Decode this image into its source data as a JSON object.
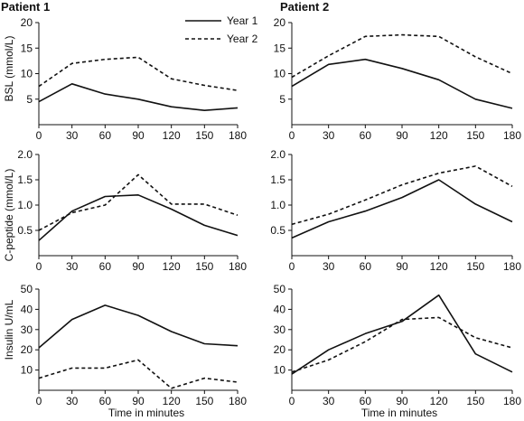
{
  "figure": {
    "patient_titles": [
      "Patient 1",
      "Patient 2"
    ],
    "row_ylabels": [
      "BSL (mmol/L)",
      "C-peptide (mmol/L)",
      "Insulin U/mL"
    ],
    "xlabel": "Time in minutes",
    "legend": [
      {
        "label": "Year 1",
        "style": "solid"
      },
      {
        "label": "Year 2",
        "style": "dashed"
      }
    ],
    "line_color": "#111111"
  },
  "chart_data": [
    {
      "type": "line",
      "panel": "Patient 1 - BSL",
      "title": "Patient 1",
      "ylabel": "BSL (mmol/L)",
      "xlabel": "",
      "x": [
        0,
        30,
        60,
        90,
        120,
        150,
        180
      ],
      "xticks": [
        "0",
        "30",
        "60",
        "90",
        "120",
        "150",
        "180"
      ],
      "ylim": [
        0,
        20
      ],
      "yticks": [
        "5",
        "10",
        "15",
        "20"
      ],
      "series": [
        {
          "name": "Year 1",
          "values": [
            4.5,
            8.0,
            6.0,
            5.0,
            3.5,
            2.8,
            3.3
          ]
        },
        {
          "name": "Year 2",
          "values": [
            7.5,
            12.0,
            12.8,
            13.2,
            9.0,
            7.7,
            6.7
          ]
        }
      ]
    },
    {
      "type": "line",
      "panel": "Patient 2 - BSL",
      "title": "Patient 2",
      "ylabel": "",
      "xlabel": "",
      "x": [
        0,
        30,
        60,
        90,
        120,
        150,
        180
      ],
      "xticks": [
        "0",
        "30",
        "60",
        "90",
        "120",
        "150",
        "180"
      ],
      "ylim": [
        0,
        20
      ],
      "yticks": [
        "5",
        "10",
        "15",
        "20"
      ],
      "series": [
        {
          "name": "Year 1",
          "values": [
            7.5,
            11.8,
            12.8,
            11.0,
            8.8,
            5.0,
            3.2
          ]
        },
        {
          "name": "Year 2",
          "values": [
            9.3,
            13.5,
            17.3,
            17.6,
            17.3,
            13.3,
            10.0
          ]
        }
      ]
    },
    {
      "type": "line",
      "panel": "Patient 1 - C-peptide",
      "title": "",
      "ylabel": "C-peptide (mmol/L)",
      "xlabel": "",
      "x": [
        0,
        30,
        60,
        90,
        120,
        150,
        180
      ],
      "xticks": [
        "0",
        "30",
        "60",
        "90",
        "120",
        "150",
        "180"
      ],
      "ylim": [
        0,
        2.0
      ],
      "yticks": [
        "0.5",
        "1.0",
        "1.5",
        "2.0"
      ],
      "series": [
        {
          "name": "Year 1",
          "values": [
            0.3,
            0.88,
            1.17,
            1.2,
            0.92,
            0.6,
            0.4
          ]
        },
        {
          "name": "Year 2",
          "values": [
            0.5,
            0.85,
            1.0,
            1.6,
            1.02,
            1.02,
            0.8
          ]
        }
      ]
    },
    {
      "type": "line",
      "panel": "Patient 2 - C-peptide",
      "title": "",
      "ylabel": "",
      "xlabel": "",
      "x": [
        0,
        30,
        60,
        90,
        120,
        150,
        180
      ],
      "xticks": [
        "0",
        "30",
        "60",
        "90",
        "120",
        "150",
        "180"
      ],
      "ylim": [
        0,
        2.0
      ],
      "yticks": [
        "0.5",
        "1.0",
        "1.5",
        "2.0"
      ],
      "series": [
        {
          "name": "Year 1",
          "values": [
            0.35,
            0.67,
            0.88,
            1.15,
            1.5,
            1.02,
            0.67
          ]
        },
        {
          "name": "Year 2",
          "values": [
            0.62,
            0.82,
            1.1,
            1.4,
            1.63,
            1.77,
            1.37
          ]
        }
      ]
    },
    {
      "type": "line",
      "panel": "Patient 1 - Insulin",
      "title": "",
      "ylabel": "Insulin U/mL",
      "xlabel": "Time in minutes",
      "x": [
        0,
        30,
        60,
        90,
        120,
        150,
        180
      ],
      "xticks": [
        "0",
        "30",
        "60",
        "90",
        "120",
        "150",
        "180"
      ],
      "ylim": [
        0,
        50
      ],
      "yticks": [
        "10",
        "20",
        "30",
        "40",
        "50"
      ],
      "series": [
        {
          "name": "Year 1",
          "values": [
            21,
            35,
            42,
            37,
            29,
            23,
            22
          ]
        },
        {
          "name": "Year 2",
          "values": [
            6,
            11,
            11,
            15,
            1,
            6,
            4
          ]
        }
      ]
    },
    {
      "type": "line",
      "panel": "Patient 2 - Insulin",
      "title": "",
      "ylabel": "",
      "xlabel": "Time in minutes",
      "x": [
        0,
        30,
        60,
        90,
        120,
        150,
        180
      ],
      "xticks": [
        "0",
        "30",
        "60",
        "90",
        "120",
        "150",
        "180"
      ],
      "ylim": [
        0,
        50
      ],
      "yticks": [
        "10",
        "20",
        "30",
        "40",
        "50"
      ],
      "series": [
        {
          "name": "Year 1",
          "values": [
            8,
            20,
            28,
            34,
            47,
            18,
            9
          ]
        },
        {
          "name": "Year 2",
          "values": [
            9,
            15,
            24,
            35,
            36,
            26,
            21
          ]
        }
      ]
    }
  ]
}
